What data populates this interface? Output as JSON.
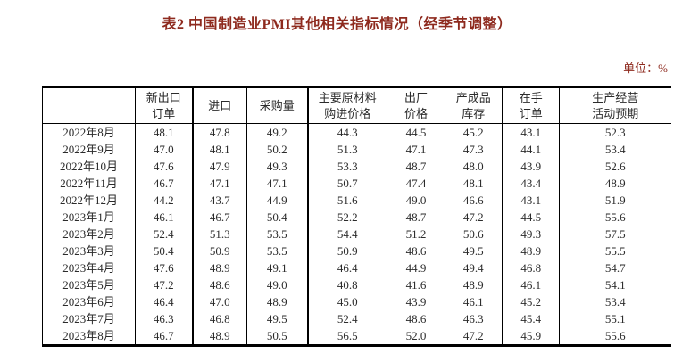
{
  "title": "表2 中国制造业PMI其他相关指标情况（经季节调整）",
  "unit_label": "单位：%",
  "colors": {
    "title-color": "#8E2A1E",
    "text-color": "#2b2b2b",
    "border-color": "#000000"
  },
  "table": {
    "corner_header": "",
    "columns": [
      "新出口\n订单",
      "进口",
      "采购量",
      "主要原材料\n购进价格",
      "出厂\n价格",
      "产成品\n库存",
      "在手\n订单",
      "生产经营\n活动预期"
    ],
    "rows": [
      {
        "month": "2022年8月",
        "values": [
          "48.1",
          "47.8",
          "49.2",
          "44.3",
          "44.5",
          "45.2",
          "43.1",
          "52.3"
        ]
      },
      {
        "month": "2022年9月",
        "values": [
          "47.0",
          "48.1",
          "50.2",
          "51.3",
          "47.1",
          "47.3",
          "44.1",
          "53.4"
        ]
      },
      {
        "month": "2022年10月",
        "values": [
          "47.6",
          "47.9",
          "49.3",
          "53.3",
          "48.7",
          "48.0",
          "43.9",
          "52.6"
        ]
      },
      {
        "month": "2022年11月",
        "values": [
          "46.7",
          "47.1",
          "47.1",
          "50.7",
          "47.4",
          "48.1",
          "43.4",
          "48.9"
        ]
      },
      {
        "month": "2022年12月",
        "values": [
          "44.2",
          "43.7",
          "44.9",
          "51.6",
          "49.0",
          "46.6",
          "43.1",
          "51.9"
        ]
      },
      {
        "month": "2023年1月",
        "values": [
          "46.1",
          "46.7",
          "50.4",
          "52.2",
          "48.7",
          "47.2",
          "44.5",
          "55.6"
        ]
      },
      {
        "month": "2023年2月",
        "values": [
          "52.4",
          "51.3",
          "53.5",
          "54.4",
          "51.2",
          "50.6",
          "49.3",
          "57.5"
        ]
      },
      {
        "month": "2023年3月",
        "values": [
          "50.4",
          "50.9",
          "53.5",
          "50.9",
          "48.6",
          "49.5",
          "48.9",
          "55.5"
        ]
      },
      {
        "month": "2023年4月",
        "values": [
          "47.6",
          "48.9",
          "49.1",
          "46.4",
          "44.9",
          "49.4",
          "46.8",
          "54.7"
        ]
      },
      {
        "month": "2023年5月",
        "values": [
          "47.2",
          "48.6",
          "49.0",
          "40.8",
          "41.6",
          "48.9",
          "46.1",
          "54.1"
        ]
      },
      {
        "month": "2023年6月",
        "values": [
          "46.4",
          "47.0",
          "48.9",
          "45.0",
          "43.9",
          "46.1",
          "45.2",
          "53.4"
        ]
      },
      {
        "month": "2023年7月",
        "values": [
          "46.3",
          "46.8",
          "49.5",
          "52.4",
          "48.6",
          "46.3",
          "45.4",
          "55.1"
        ]
      },
      {
        "month": "2023年8月",
        "values": [
          "46.7",
          "48.9",
          "50.5",
          "56.5",
          "52.0",
          "47.2",
          "45.9",
          "55.6"
        ]
      }
    ]
  }
}
